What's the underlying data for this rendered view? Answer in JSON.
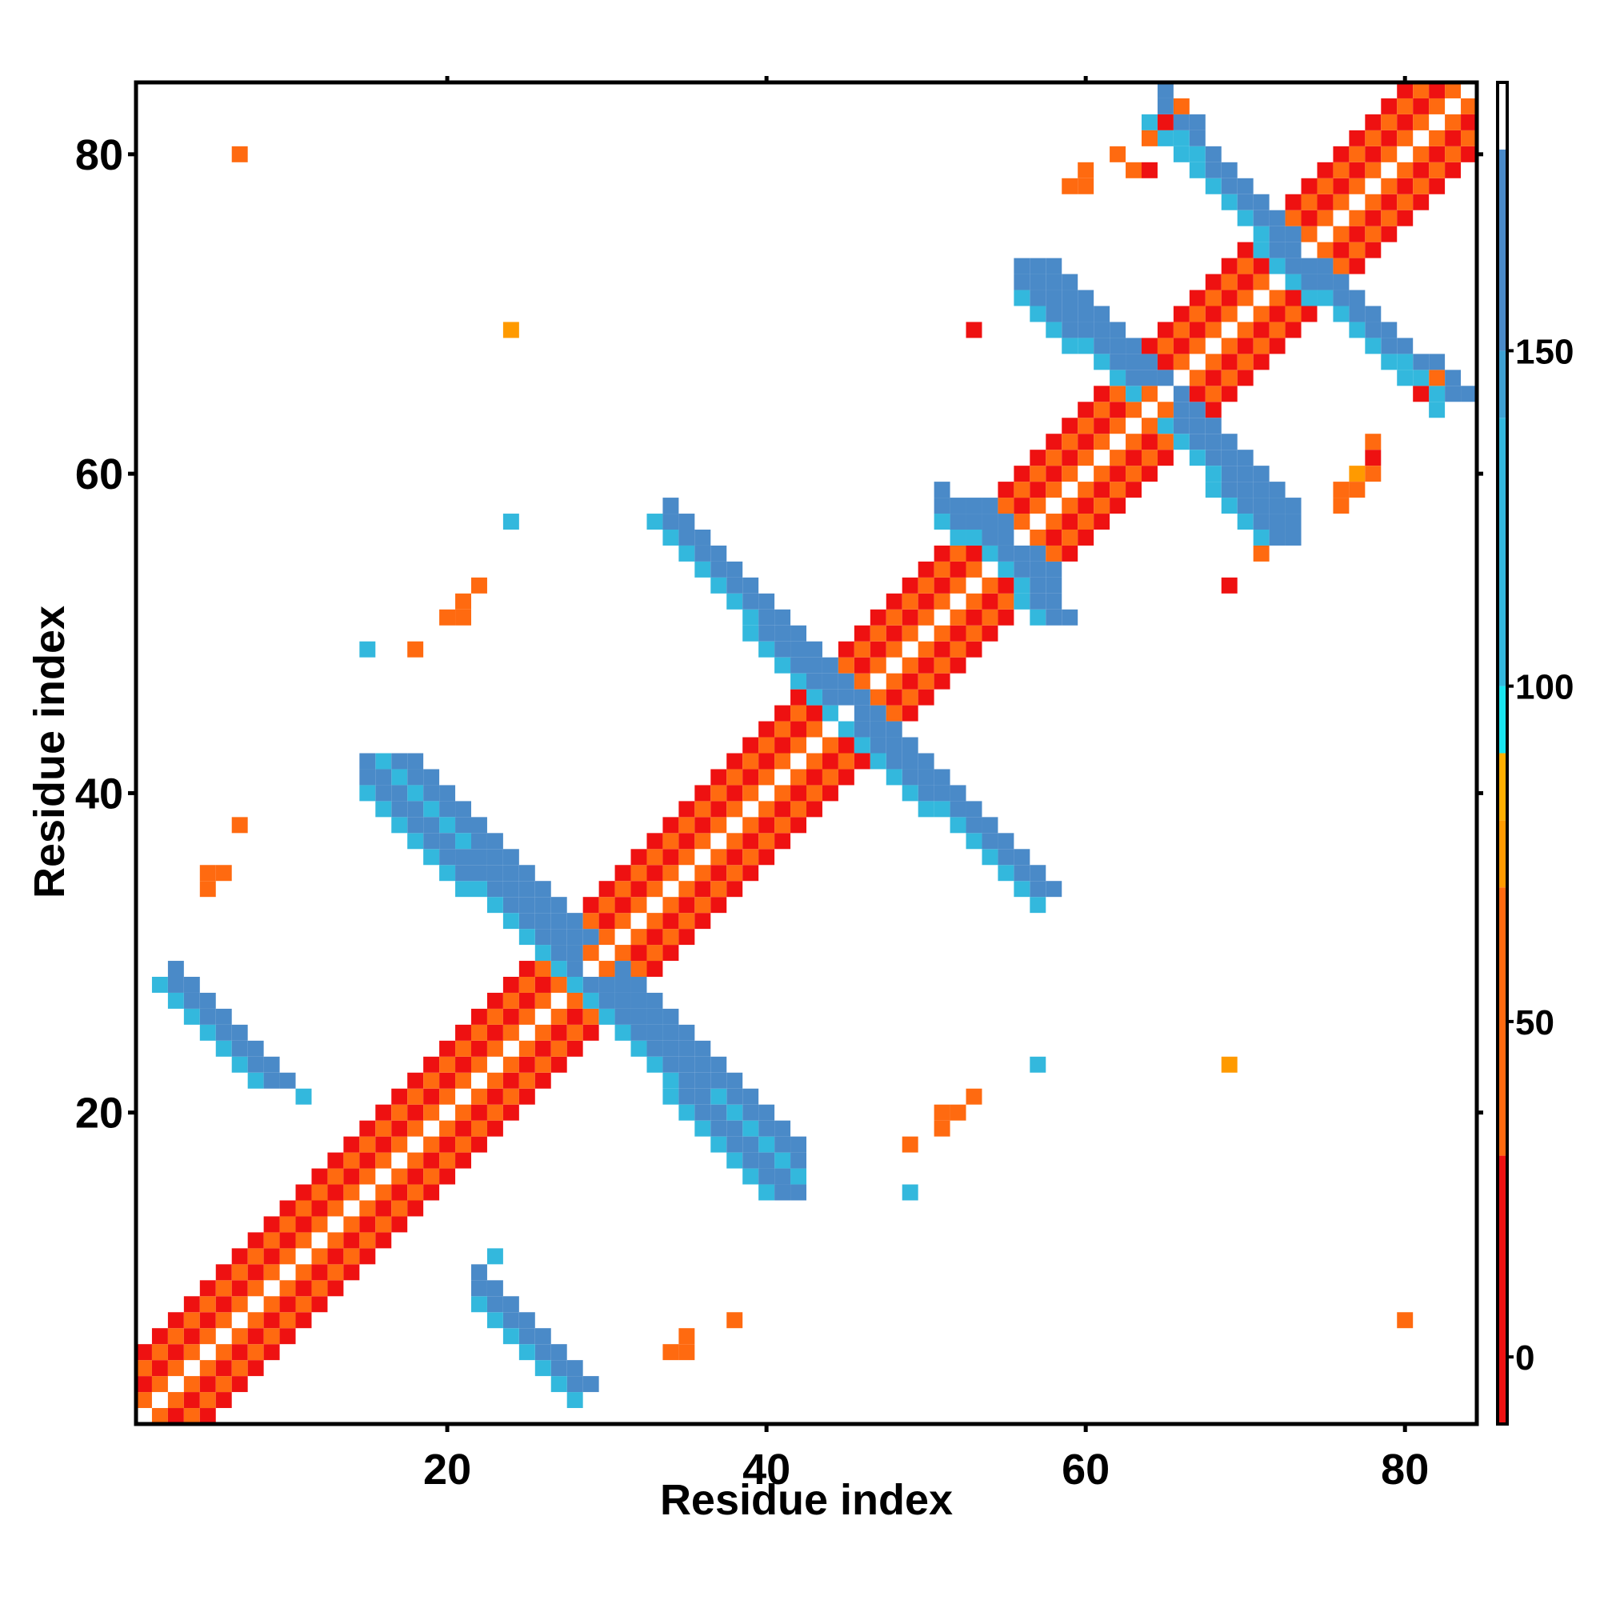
{
  "chart_data": {
    "type": "heatmap",
    "title": "",
    "xlabel": "Residue index",
    "ylabel": "Residue index",
    "xlim": [
      1,
      84
    ],
    "ylim": [
      1,
      84
    ],
    "x_ticks": [
      20,
      40,
      60,
      80
    ],
    "y_ticks": [
      20,
      40,
      60,
      80
    ],
    "x_tick_labels": [
      "20",
      "40",
      "60",
      "80"
    ],
    "y_tick_labels": [
      "20",
      "40",
      "60",
      "80"
    ],
    "colorbar": {
      "range": [
        -10,
        190
      ],
      "ticks": [
        0,
        50,
        100,
        150
      ],
      "tick_labels": [
        "0",
        "50",
        "100",
        "150"
      ],
      "segments": [
        {
          "from": -10,
          "to": 30,
          "color": "#ee1111"
        },
        {
          "from": 30,
          "to": 70,
          "color": "#ff6a10"
        },
        {
          "from": 70,
          "to": 80,
          "color": "#ff9a00"
        },
        {
          "from": 80,
          "to": 90,
          "color": "#ffb000"
        },
        {
          "from": 90,
          "to": 100,
          "color": "#19e6f0"
        },
        {
          "from": 100,
          "to": 140,
          "color": "#33b8dd"
        },
        {
          "from": 140,
          "to": 150,
          "color": "#3ea0d2"
        },
        {
          "from": 150,
          "to": 180,
          "color": "#4a8ac8"
        },
        {
          "from": 180,
          "to": 190,
          "color": "#ffffff"
        }
      ]
    },
    "value_colors": {
      "red": "#ee1111",
      "orange": "#ff6a10",
      "amber": "#ff9a00",
      "cyan": "#19e6f0",
      "lightblue": "#33b8dd",
      "steelblue": "#4a8ac8"
    },
    "cells_description": "Each cell [x, y, value] is a residue pair with a value; empty cells are blank.",
    "diagonal_band": {
      "x_from": 1,
      "x_to": 84,
      "widths": 4
    },
    "segments": [
      {
        "x0": 1,
        "y0": 1,
        "x1": 84,
        "y1": 84,
        "half_width": 4,
        "pattern": "diagonal"
      },
      {
        "x0": 3,
        "y0": 28,
        "x1": 9,
        "y1": 22,
        "half_width": 1,
        "value": 160
      },
      {
        "x0": 17,
        "y0": 42,
        "x1": 28,
        "y1": 31,
        "half_width": 1,
        "value": 160
      },
      {
        "x0": 29,
        "y0": 28,
        "x1": 41,
        "y1": 15,
        "half_width": 1,
        "value": 160
      },
      {
        "x0": 23,
        "y0": 8,
        "x1": 28,
        "y1": 3,
        "half_width": 1,
        "value": 160
      },
      {
        "x0": 34,
        "y0": 57,
        "x1": 45,
        "y1": 46,
        "half_width": 1,
        "value": 160
      },
      {
        "x0": 46,
        "y0": 44,
        "x1": 57,
        "y1": 34,
        "half_width": 1,
        "value": 160
      },
      {
        "x0": 53,
        "y0": 58,
        "x1": 58,
        "y1": 51,
        "half_width": 1,
        "value": 160
      },
      {
        "x0": 57,
        "y0": 73,
        "x1": 64,
        "y1": 66,
        "half_width": 1,
        "value": 160
      },
      {
        "x0": 66,
        "y0": 63,
        "x1": 72,
        "y1": 56,
        "half_width": 1,
        "value": 160
      },
      {
        "x0": 65,
        "y0": 82,
        "x1": 72,
        "y1": 75,
        "half_width": 1,
        "value": 160
      },
      {
        "x0": 73,
        "y0": 73,
        "x1": 83,
        "y1": 65,
        "half_width": 1,
        "value": 160
      }
    ],
    "scattered_cells": [
      [
        7,
        80,
        60
      ],
      [
        24,
        69,
        70
      ],
      [
        24,
        57,
        110
      ],
      [
        7,
        38,
        60
      ],
      [
        5,
        35,
        60
      ],
      [
        6,
        35,
        60
      ],
      [
        5,
        34,
        60
      ],
      [
        15,
        49,
        130
      ],
      [
        18,
        49,
        60
      ],
      [
        20,
        51,
        60
      ],
      [
        21,
        51,
        60
      ],
      [
        21,
        52,
        60
      ],
      [
        22,
        53,
        60
      ],
      [
        11,
        21,
        110
      ],
      [
        23,
        11,
        110
      ],
      [
        34,
        5,
        60
      ],
      [
        35,
        5,
        60
      ],
      [
        35,
        6,
        60
      ],
      [
        38,
        7,
        60
      ],
      [
        49,
        18,
        60
      ],
      [
        49,
        15,
        130
      ],
      [
        51,
        19,
        60
      ],
      [
        51,
        20,
        60
      ],
      [
        52,
        20,
        60
      ],
      [
        53,
        21,
        60
      ],
      [
        57,
        23,
        110
      ],
      [
        69,
        23,
        70
      ],
      [
        69,
        53,
        20
      ],
      [
        80,
        7,
        60
      ],
      [
        53,
        69,
        20
      ],
      [
        78,
        61,
        20
      ],
      [
        78,
        62,
        60
      ],
      [
        77,
        60,
        70
      ],
      [
        76,
        58,
        60
      ],
      [
        76,
        59,
        60
      ],
      [
        77,
        59,
        60
      ],
      [
        81,
        65,
        20
      ],
      [
        82,
        66,
        60
      ],
      [
        71,
        55,
        60
      ],
      [
        78,
        60,
        60
      ],
      [
        62,
        80,
        60
      ],
      [
        63,
        79,
        60
      ],
      [
        64,
        79,
        20
      ],
      [
        59,
        78,
        60
      ],
      [
        60,
        78,
        60
      ],
      [
        60,
        79,
        60
      ],
      [
        65,
        82,
        20
      ],
      [
        66,
        83,
        60
      ],
      [
        64,
        81,
        60
      ]
    ]
  }
}
